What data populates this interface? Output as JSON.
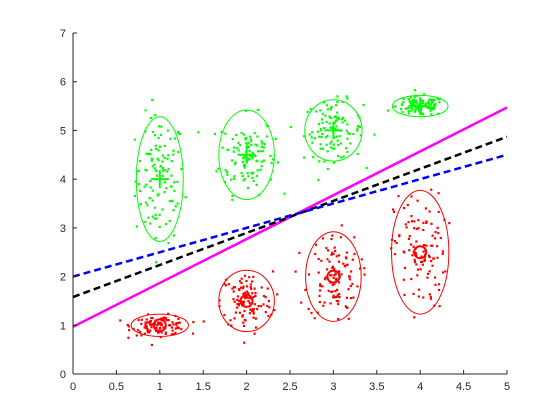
{
  "chart_data": {
    "type": "scatter",
    "title": "",
    "xlabel": "",
    "ylabel": "",
    "xlim": [
      0,
      5
    ],
    "ylim": [
      0,
      7
    ],
    "xticks": [
      "0",
      "0.5",
      "1",
      "1.5",
      "2",
      "2.5",
      "3",
      "3.5",
      "4",
      "4.5",
      "5"
    ],
    "yticks": [
      "0",
      "1",
      "2",
      "3",
      "4",
      "5",
      "6",
      "7"
    ],
    "grid": false,
    "legend": "none",
    "colors": {
      "class_a": "#00ff00",
      "class_b": "#ff0000",
      "line_magenta": "#ff00ff",
      "line_black": "#000000",
      "line_blue": "#0000ff"
    },
    "clusters": [
      {
        "class": "class_a",
        "center": [
          1,
          4
        ],
        "sx": 0.14,
        "sy": 0.65,
        "ellipse_rx": 0.27,
        "ellipse_ry": 1.28,
        "marker": "plus",
        "n": 110
      },
      {
        "class": "class_a",
        "center": [
          2,
          4.5
        ],
        "sx": 0.16,
        "sy": 0.4,
        "ellipse_rx": 0.32,
        "ellipse_ry": 0.92,
        "marker": "plus",
        "n": 110
      },
      {
        "class": "class_a",
        "center": [
          3,
          5
        ],
        "sx": 0.17,
        "sy": 0.3,
        "ellipse_rx": 0.33,
        "ellipse_ry": 0.63,
        "marker": "plus",
        "n": 110
      },
      {
        "class": "class_a",
        "center": [
          4,
          5.5
        ],
        "sx": 0.14,
        "sy": 0.1,
        "ellipse_rx": 0.32,
        "ellipse_ry": 0.22,
        "marker": "plus",
        "n": 110
      },
      {
        "class": "class_b",
        "center": [
          1,
          1
        ],
        "sx": 0.16,
        "sy": 0.1,
        "ellipse_rx": 0.33,
        "ellipse_ry": 0.23,
        "marker": "circle",
        "n": 110
      },
      {
        "class": "class_b",
        "center": [
          2,
          1.5
        ],
        "sx": 0.15,
        "sy": 0.3,
        "ellipse_rx": 0.32,
        "ellipse_ry": 0.63,
        "marker": "circle",
        "n": 110
      },
      {
        "class": "class_b",
        "center": [
          3,
          2
        ],
        "sx": 0.15,
        "sy": 0.45,
        "ellipse_rx": 0.32,
        "ellipse_ry": 0.92,
        "marker": "circle",
        "n": 110
      },
      {
        "class": "class_b",
        "center": [
          4,
          2.5
        ],
        "sx": 0.15,
        "sy": 0.6,
        "ellipse_rx": 0.33,
        "ellipse_ry": 1.27,
        "marker": "circle",
        "n": 110
      }
    ],
    "lines": [
      {
        "color": "line_magenta",
        "style": "solid",
        "x": [
          0,
          5
        ],
        "y": [
          0.97,
          5.47
        ]
      },
      {
        "color": "line_black",
        "style": "dashed",
        "x": [
          0,
          5
        ],
        "y": [
          1.58,
          4.87
        ]
      },
      {
        "color": "line_blue",
        "style": "dashed",
        "x": [
          0,
          5
        ],
        "y": [
          2.0,
          4.5
        ]
      }
    ]
  }
}
